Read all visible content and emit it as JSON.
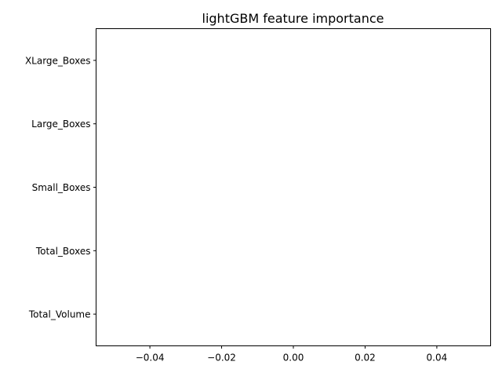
{
  "chart_data": {
    "type": "bar",
    "orientation": "horizontal",
    "title": "lightGBM feature importance",
    "xlabel": "",
    "ylabel": "",
    "categories": [
      "Total_Volume",
      "Total_Boxes",
      "Small_Boxes",
      "Large_Boxes",
      "XLarge_Boxes"
    ],
    "values": [
      0,
      0,
      0,
      0,
      0
    ],
    "xlim": [
      -0.055,
      0.055
    ],
    "xticks": [
      -0.04,
      -0.02,
      0.0,
      0.02,
      0.04
    ],
    "xtick_labels": [
      "−0.04",
      "−0.02",
      "0.00",
      "0.02",
      "0.04"
    ],
    "grid": false,
    "legend": "none"
  }
}
